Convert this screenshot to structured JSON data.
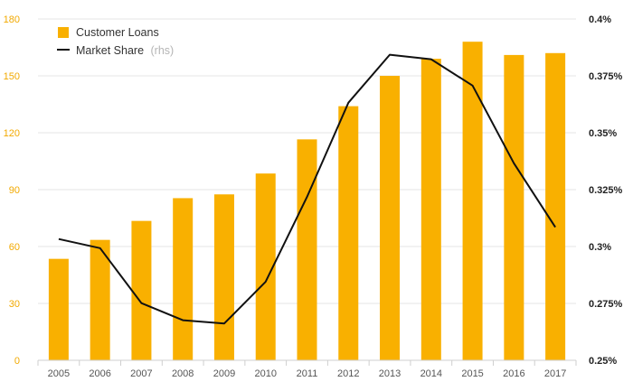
{
  "chart_data": {
    "type": "bar",
    "categories": [
      "2005",
      "2006",
      "2007",
      "2008",
      "2009",
      "2010",
      "2011",
      "2012",
      "2013",
      "2014",
      "2015",
      "2016",
      "2017"
    ],
    "series": [
      {
        "name": "Customer Loans",
        "type": "bar",
        "axis": "left",
        "color": "#f9b000",
        "values": [
          53.5,
          63.5,
          73.5,
          85.5,
          87.5,
          98.5,
          116.5,
          134,
          150,
          159,
          168,
          161,
          162
        ]
      },
      {
        "name": "Market Share",
        "type": "line",
        "axis": "right",
        "color": "#111111",
        "values": [
          0.3033,
          0.2993,
          0.2751,
          0.2676,
          0.2662,
          0.2845,
          0.3218,
          0.3632,
          0.3843,
          0.3823,
          0.3707,
          0.3366,
          0.3085
        ]
      }
    ],
    "legend": [
      {
        "label": "Customer Loans",
        "suffix": ""
      },
      {
        "label": "Market Share",
        "suffix": "(rhs)"
      }
    ],
    "legend_position": "top-left",
    "y_left": {
      "min": 0,
      "max": 180,
      "ticks": [
        0,
        30,
        60,
        90,
        120,
        150,
        180
      ],
      "tick_labels": [
        "0",
        "30",
        "60",
        "90",
        "120",
        "150",
        "180"
      ],
      "color": "#f2a900"
    },
    "y_right": {
      "min": 0.25,
      "max": 0.4,
      "ticks": [
        0.25,
        0.275,
        0.3,
        0.325,
        0.35,
        0.375,
        0.4
      ],
      "tick_labels": [
        "0.25%",
        "0.275%",
        "0.3%",
        "0.325%",
        "0.35%",
        "0.375%",
        "0.4%"
      ]
    },
    "grid": "horizontal",
    "colors": {
      "bar": "#f9b000",
      "line": "#111111",
      "grid": "#e6e6e6",
      "left_axis_text": "#f2a900"
    }
  }
}
